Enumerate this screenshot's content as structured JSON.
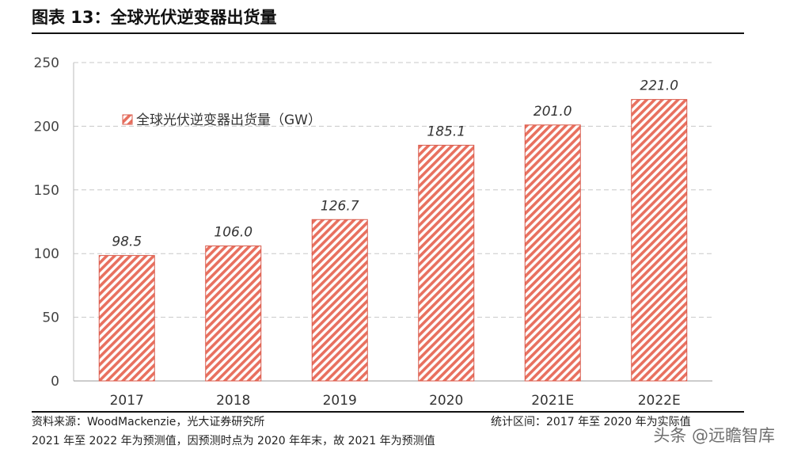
{
  "title": "图表 13：全球光伏逆变器出货量",
  "footer": {
    "source": "资料来源：WoodMackenzie，光大证券研究所",
    "range_note": "统计区间：2017 年至 2020 年为实际值",
    "forecast_note": "2021 年至 2022 年为预测值，因预测时点为 2020 年年末，故 2021 年为预测值",
    "watermark": "头条 @远瞻智库"
  },
  "chart_data": {
    "type": "bar",
    "categories": [
      "2017",
      "2018",
      "2019",
      "2020",
      "2021E",
      "2022E"
    ],
    "series": [
      {
        "name": "全球光伏逆变器出货量（GW）",
        "values": [
          98.5,
          106.0,
          126.7,
          185.1,
          201.0,
          221.0
        ],
        "labels": [
          "98.5",
          "106.0",
          "126.7",
          "185.1",
          "201.0",
          "221.0"
        ]
      }
    ],
    "ylim": [
      0,
      250
    ],
    "yticks": [
      "0",
      "50",
      "100",
      "150",
      "200",
      "250"
    ],
    "grid": true,
    "legend": "top-left",
    "bar_color": "#e8705f",
    "bar_pattern": "diagonal-hatch"
  }
}
